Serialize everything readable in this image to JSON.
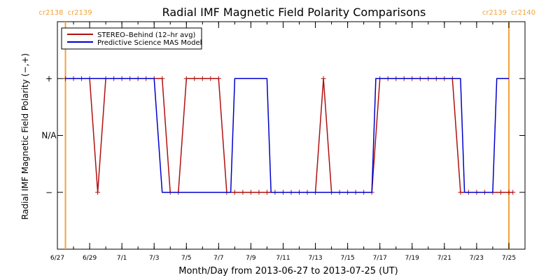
{
  "chart_data": {
    "type": "line",
    "title": "Radial IMF Magnetic Field Polarity Comparisons",
    "xlabel": "Month/Day from 2013-06-27 to 2013-07-25 (UT)",
    "ylabel": "Radial IMF Magnetic Field Polarity (−,+)",
    "xlim": [
      "2013-06-27",
      "2013-07-26"
    ],
    "x_ticks": [
      {
        "date": "2013-06-27",
        "label": "6/27"
      },
      {
        "date": "2013-06-29",
        "label": "6/29"
      },
      {
        "date": "2013-07-01",
        "label": "7/1"
      },
      {
        "date": "2013-07-03",
        "label": "7/3"
      },
      {
        "date": "2013-07-05",
        "label": "7/5"
      },
      {
        "date": "2013-07-07",
        "label": "7/7"
      },
      {
        "date": "2013-07-09",
        "label": "7/9"
      },
      {
        "date": "2013-07-11",
        "label": "7/11"
      },
      {
        "date": "2013-07-13",
        "label": "7/13"
      },
      {
        "date": "2013-07-15",
        "label": "7/15"
      },
      {
        "date": "2013-07-17",
        "label": "7/17"
      },
      {
        "date": "2013-07-19",
        "label": "7/19"
      },
      {
        "date": "2013-07-21",
        "label": "7/21"
      },
      {
        "date": "2013-07-23",
        "label": "7/23"
      },
      {
        "date": "2013-07-25",
        "label": "7/25"
      }
    ],
    "y_categories": [
      {
        "value": 1,
        "label": "+"
      },
      {
        "value": 0,
        "label": "N/A"
      },
      {
        "value": -1,
        "label": "−"
      }
    ],
    "ylim": [
      -2,
      2
    ],
    "carrington_markers": [
      {
        "date": "2013-06-27T12:00",
        "left_label": "cr2138",
        "right_label": "cr2139",
        "color": "#f2a23a"
      },
      {
        "date": "2013-07-25T00:00",
        "left_label": "cr2139",
        "right_label": "cr2140",
        "color": "#f2a23a"
      }
    ],
    "series": [
      {
        "name": "STEREO–Behind (12–hr avg)",
        "color": "#b01010",
        "marker": "plus",
        "points": [
          [
            "2013-06-27T12:00",
            1
          ],
          [
            "2013-06-28T00:00",
            1
          ],
          [
            "2013-06-28T12:00",
            1
          ],
          [
            "2013-06-29T00:00",
            1
          ],
          [
            "2013-06-29T12:00",
            -1
          ],
          [
            "2013-06-30T00:00",
            1
          ],
          [
            "2013-06-30T12:00",
            1
          ],
          [
            "2013-07-01T00:00",
            1
          ],
          [
            "2013-07-01T12:00",
            1
          ],
          [
            "2013-07-02T00:00",
            1
          ],
          [
            "2013-07-02T12:00",
            1
          ],
          [
            "2013-07-03T00:00",
            1
          ],
          [
            "2013-07-03T12:00",
            1
          ],
          [
            "2013-07-04T00:00",
            -1
          ],
          [
            "2013-07-04T12:00",
            -1
          ],
          [
            "2013-07-05T00:00",
            1
          ],
          [
            "2013-07-05T12:00",
            1
          ],
          [
            "2013-07-06T00:00",
            1
          ],
          [
            "2013-07-06T12:00",
            1
          ],
          [
            "2013-07-07T00:00",
            1
          ],
          [
            "2013-07-07T12:00",
            -1
          ],
          [
            "2013-07-08T00:00",
            -1
          ],
          [
            "2013-07-08T12:00",
            -1
          ],
          [
            "2013-07-09T00:00",
            -1
          ],
          [
            "2013-07-09T12:00",
            -1
          ],
          [
            "2013-07-10T00:00",
            -1
          ],
          [
            "2013-07-10T12:00",
            -1
          ],
          [
            "2013-07-11T00:00",
            -1
          ],
          [
            "2013-07-11T12:00",
            -1
          ],
          [
            "2013-07-12T00:00",
            -1
          ],
          [
            "2013-07-12T12:00",
            -1
          ],
          [
            "2013-07-13T00:00",
            -1
          ],
          [
            "2013-07-13T12:00",
            1
          ],
          [
            "2013-07-14T00:00",
            -1
          ],
          [
            "2013-07-14T12:00",
            -1
          ],
          [
            "2013-07-15T00:00",
            -1
          ],
          [
            "2013-07-15T12:00",
            -1
          ],
          [
            "2013-07-16T00:00",
            -1
          ],
          [
            "2013-07-16T12:00",
            -1
          ],
          [
            "2013-07-17T00:00",
            1
          ],
          [
            "2013-07-17T12:00",
            1
          ],
          [
            "2013-07-18T00:00",
            1
          ],
          [
            "2013-07-18T12:00",
            1
          ],
          [
            "2013-07-19T00:00",
            1
          ],
          [
            "2013-07-19T12:00",
            1
          ],
          [
            "2013-07-20T00:00",
            1
          ],
          [
            "2013-07-20T12:00",
            1
          ],
          [
            "2013-07-21T00:00",
            1
          ],
          [
            "2013-07-21T12:00",
            1
          ],
          [
            "2013-07-22T00:00",
            -1
          ],
          [
            "2013-07-22T12:00",
            -1
          ],
          [
            "2013-07-23T00:00",
            -1
          ],
          [
            "2013-07-23T12:00",
            -1
          ],
          [
            "2013-07-24T00:00",
            -1
          ],
          [
            "2013-07-24T12:00",
            -1
          ],
          [
            "2013-07-25T00:00",
            -1
          ],
          [
            "2013-07-25T06:00",
            -1
          ]
        ]
      },
      {
        "name": "Predictive Science MAS Model",
        "color": "#0000cc",
        "marker": "none",
        "points": [
          [
            "2013-06-27T12:00",
            1
          ],
          [
            "2013-07-03T00:00",
            1
          ],
          [
            "2013-07-03T12:00",
            -1
          ],
          [
            "2013-07-07T18:00",
            -1
          ],
          [
            "2013-07-08T00:00",
            1
          ],
          [
            "2013-07-10T00:00",
            1
          ],
          [
            "2013-07-10T06:00",
            -1
          ],
          [
            "2013-07-16T12:00",
            -1
          ],
          [
            "2013-07-16T18:00",
            1
          ],
          [
            "2013-07-22T00:00",
            1
          ],
          [
            "2013-07-22T06:00",
            -1
          ],
          [
            "2013-07-24T00:00",
            -1
          ],
          [
            "2013-07-24T06:00",
            1
          ],
          [
            "2013-07-25T00:00",
            1
          ]
        ]
      }
    ],
    "legend": "top-left",
    "grid": false
  }
}
